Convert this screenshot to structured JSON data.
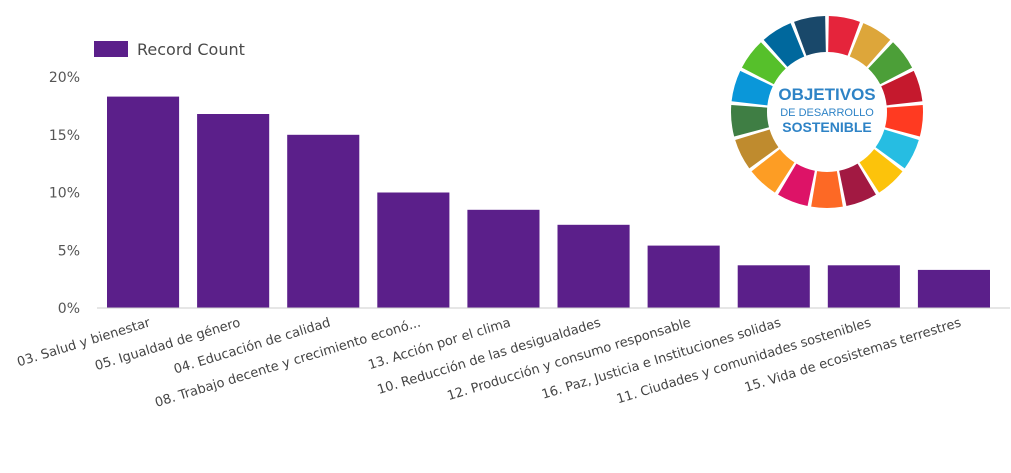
{
  "chart_data": {
    "type": "bar",
    "categories": [
      "03. Salud y bienestar",
      "05. Igualdad de género",
      "04. Educación de calidad",
      "08. Trabajo decente y crecimiento econó...",
      "13. Acción por el clima",
      "10. Reducción de las desigualdades",
      "12. Producción y consumo responsable",
      "16. Paz, Justicia e Instituciones solidas",
      "11. Ciudades y comunidades sostenibles",
      "15. Vida de ecosistemas terrestres"
    ],
    "series": [
      {
        "name": "Record Count",
        "values": [
          18.3,
          16.8,
          15.0,
          10.0,
          8.5,
          7.2,
          5.4,
          3.7,
          3.7,
          3.3
        ]
      }
    ],
    "ylim": [
      0,
      20
    ],
    "yticks": [
      0,
      5,
      10,
      15,
      20
    ],
    "ytick_labels": [
      "0%",
      "5%",
      "10%",
      "15%",
      "20%"
    ],
    "legend": "top-left",
    "grid": false,
    "colors": {
      "bar": "#5b1f8a",
      "axis": "#cccccc"
    }
  },
  "logo": {
    "line1": "OBJETIVOS",
    "line2": "DE DESARROLLO",
    "line3": "SOSTENIBLE",
    "ring_colors": [
      "#E5243B",
      "#DDA63A",
      "#4C9F38",
      "#C5192D",
      "#FF3A21",
      "#26BDE2",
      "#FCC30B",
      "#A21942",
      "#FD6925",
      "#DD1367",
      "#FD9D24",
      "#BF8B2E",
      "#3F7E44",
      "#0A97D9",
      "#56C02B",
      "#00689D",
      "#19486A"
    ]
  }
}
